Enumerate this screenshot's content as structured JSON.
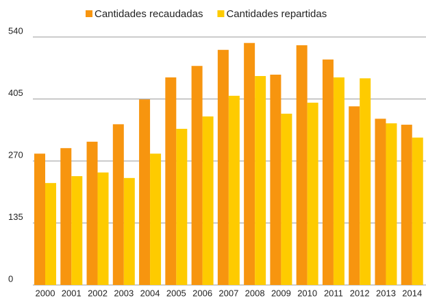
{
  "chart_data": {
    "type": "bar",
    "categories": [
      "2000",
      "2001",
      "2002",
      "2003",
      "2004",
      "2005",
      "2006",
      "2007",
      "2008",
      "2009",
      "2010",
      "2011",
      "2012",
      "2013",
      "2014"
    ],
    "series": [
      {
        "name": "Cantidades recaudadas",
        "color": "#f7950f",
        "values": [
          286,
          298,
          312,
          350,
          404,
          452,
          477,
          512,
          527,
          458,
          522,
          491,
          389,
          362,
          349
        ]
      },
      {
        "name": "Cantidades repartidas",
        "color": "#fecb00",
        "values": [
          222,
          237,
          245,
          233,
          286,
          340,
          367,
          412,
          455,
          373,
          397,
          452,
          450,
          352,
          321
        ]
      }
    ],
    "ylim": [
      0,
      540
    ],
    "yticks": [
      0,
      135,
      270,
      405,
      540
    ],
    "grid": true,
    "legend": "top"
  }
}
